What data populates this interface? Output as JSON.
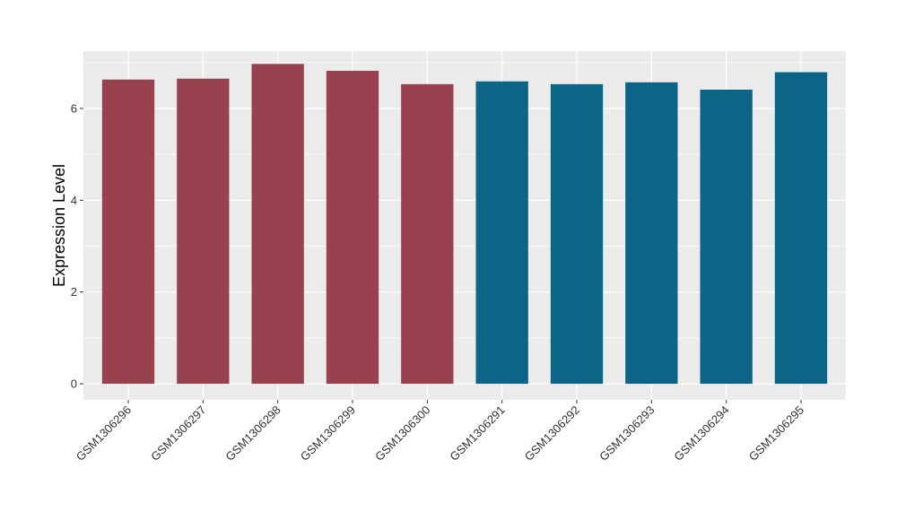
{
  "chart_data": {
    "type": "bar",
    "title": "",
    "xlabel": "",
    "ylabel": "Expression Level",
    "categories": [
      "GSM1306296",
      "GSM1306297",
      "GSM1306298",
      "GSM1306299",
      "GSM1306300",
      "GSM1306291",
      "GSM1306292",
      "GSM1306293",
      "GSM1306294",
      "GSM1306295"
    ],
    "values": [
      6.63,
      6.65,
      6.97,
      6.82,
      6.53,
      6.59,
      6.53,
      6.57,
      6.41,
      6.79
    ],
    "bar_colors": [
      "#99424f",
      "#99424f",
      "#99424f",
      "#99424f",
      "#99424f",
      "#0c6587",
      "#0c6587",
      "#0c6587",
      "#0c6587",
      "#0c6587"
    ],
    "ylim": [
      -0.35,
      7.25
    ],
    "yticks": [
      0,
      2,
      4,
      6
    ],
    "grid": true,
    "legend": "none",
    "panel_background": "#ebebeb",
    "grid_color": "#ffffff"
  }
}
